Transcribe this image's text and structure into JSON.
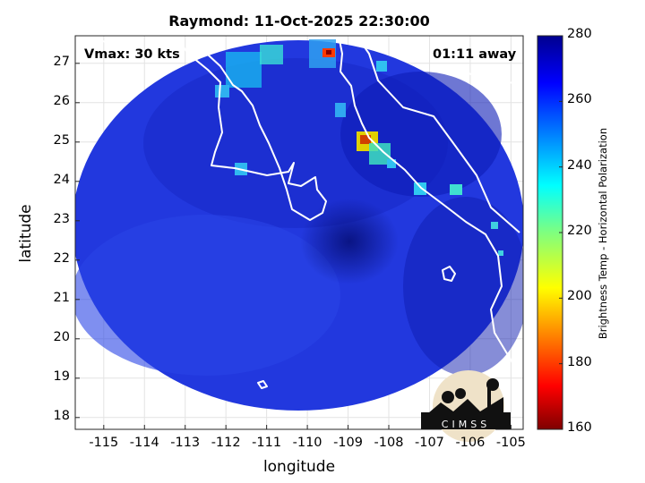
{
  "title": "Raymond: 11-Oct-2025 22:30:00",
  "vmax_label": "Vmax: 30 kts",
  "time_away": "01:11 away",
  "xlabel": "longitude",
  "ylabel": "latitude",
  "x_ticks": [
    "-115",
    "-114",
    "-113",
    "-112",
    "-111",
    "-110",
    "-109",
    "-108",
    "-107",
    "-106",
    "-105"
  ],
  "y_ticks": [
    "27",
    "26",
    "25",
    "24",
    "23",
    "22",
    "21",
    "20",
    "19",
    "18"
  ],
  "x_range": [
    -115.7,
    -104.7
  ],
  "y_range": [
    17.7,
    27.7
  ],
  "colorbar": {
    "label": "Brightness Temp - Horizontal Polarization",
    "ticks": [
      "280",
      "260",
      "240",
      "220",
      "200",
      "180",
      "160"
    ],
    "range": [
      160,
      280
    ],
    "colors": [
      "#7f0000",
      "#ff0000",
      "#ff7f00",
      "#ffff00",
      "#7fff7f",
      "#00ffff",
      "#007fff",
      "#0000ff",
      "#00008f"
    ]
  },
  "logo_text": "CIMSS",
  "map_colors": {
    "background": "#2a3fe0",
    "deep": "#0b1aa8",
    "coast": "#ffffff"
  }
}
